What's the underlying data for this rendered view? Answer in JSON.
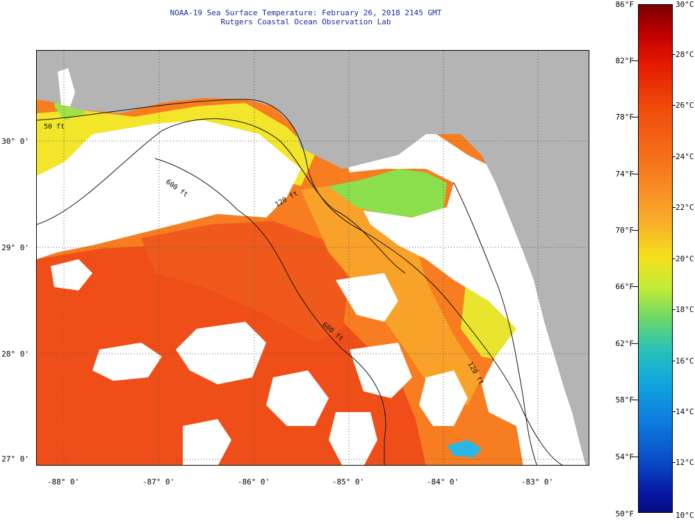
{
  "header": {
    "title": "NOAA-19 Sea Surface Temperature:  February 26, 2018 2145 GMT",
    "lab": "Rutgers Coastal Ocean Observation Lab"
  },
  "map": {
    "lat_labels": [
      "30° 0'",
      "29° 0'",
      "28° 0'",
      "27° 0'"
    ],
    "lon_labels": [
      "-88° 0'",
      "-87° 0'",
      "-86° 0'",
      "-85° 0'",
      "-84° 0'",
      "-83° 0'"
    ],
    "isobaths": [
      "50 ft",
      "120 ft",
      "600 ft",
      "600 ft",
      "120 ft"
    ],
    "colors": {
      "land": "#b4b4b4",
      "cloud": "#ffffff",
      "warm": "#f04e18",
      "mid": "#f77d20",
      "orange": "#f8a22a",
      "yellow": "#f2e52a",
      "green": "#8bdf4c",
      "cold": "#1f4fd8"
    }
  },
  "colorbar": {
    "fahrenheit": [
      "86°F",
      "82°F",
      "78°F",
      "74°F",
      "70°F",
      "66°F",
      "62°F",
      "58°F",
      "54°F",
      "50°F"
    ],
    "celsius": [
      "30°C",
      "28°C",
      "26°C",
      "24°C",
      "22°C",
      "20°C",
      "18°C",
      "16°C",
      "14°C",
      "12°C",
      "10°C"
    ]
  }
}
